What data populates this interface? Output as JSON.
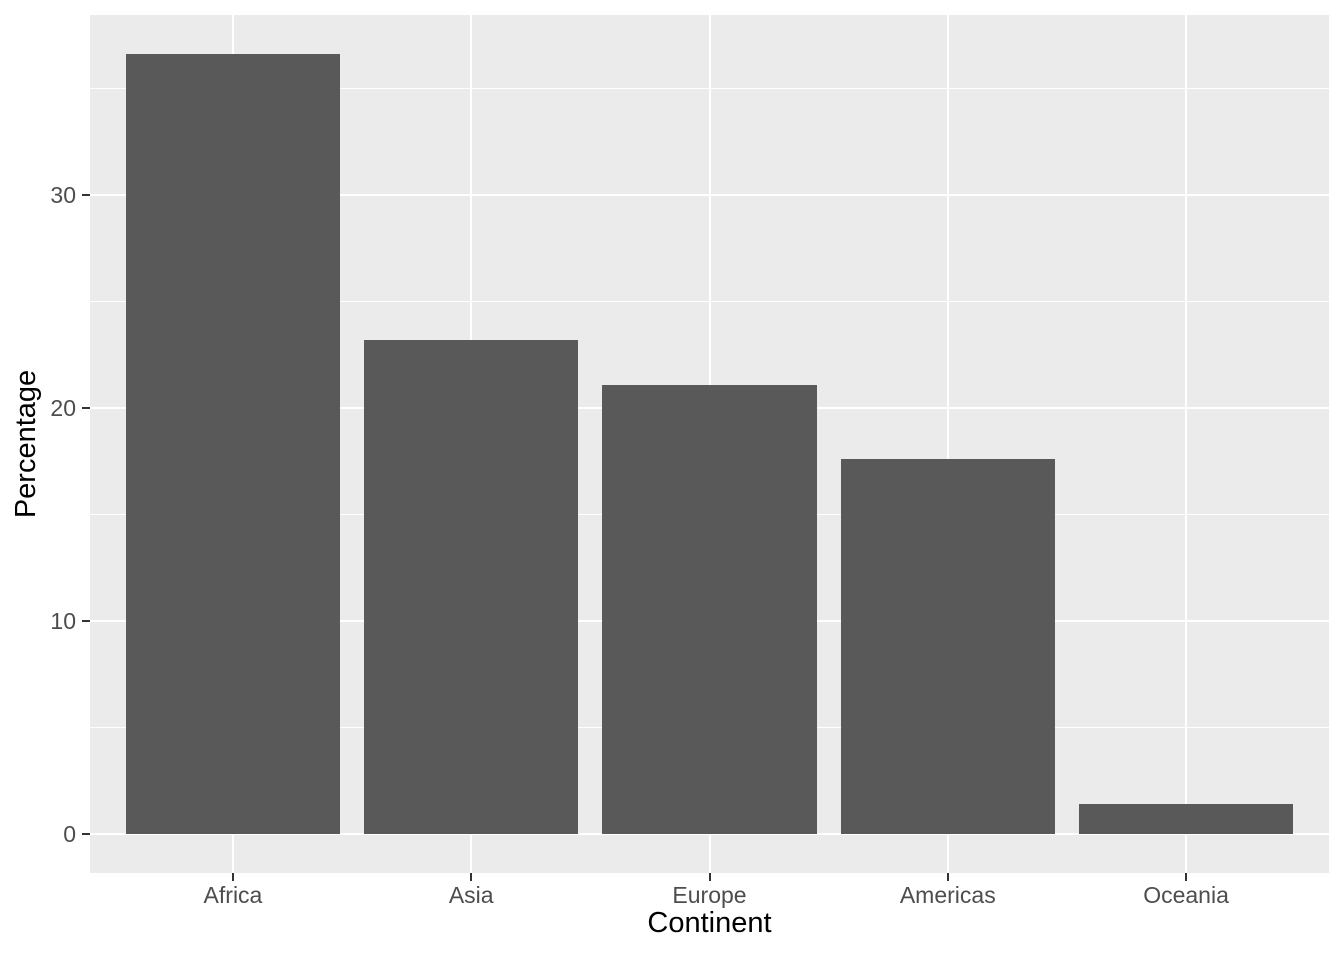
{
  "chart_data": {
    "type": "bar",
    "title": "",
    "xlabel": "Continent",
    "ylabel": "Percentage",
    "categories": [
      "Africa",
      "Asia",
      "Europe",
      "Americas",
      "Oceania"
    ],
    "values": [
      36.6,
      23.2,
      21.1,
      17.6,
      1.4
    ],
    "series": [
      {
        "name": "Percentage",
        "values": [
          36.6,
          23.2,
          21.1,
          17.6,
          1.4
        ]
      }
    ],
    "y_major_ticks": [
      0,
      10,
      20,
      30
    ],
    "y_minor_ticks": [
      5,
      15,
      25,
      35
    ],
    "y_tick_labels": [
      "0",
      "10",
      "20",
      "30"
    ],
    "ylim": [
      -1.83,
      38.45
    ],
    "grid": "horizontal major and minor white lines, vertical white line at each category center",
    "legend": "none",
    "bar_width_fraction": 0.9,
    "discrete_expand": 0.6,
    "colors": {
      "bar_fill": "#595959",
      "panel_background": "#EBEBEB",
      "gridline": "#FFFFFF",
      "axis_text": "#4D4D4D",
      "axis_title": "#000000",
      "tick_mark": "#333333",
      "page_background": "#FFFFFF"
    }
  }
}
